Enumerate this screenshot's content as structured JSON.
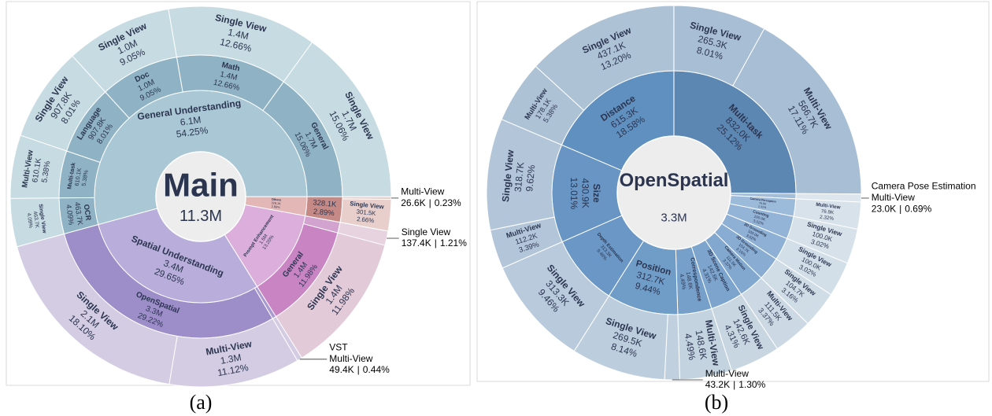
{
  "chart_data": [
    {
      "type": "sunburst",
      "center_title": "Main",
      "center_value": "11.3M",
      "caption": "(a)",
      "direction": "counterclockwise",
      "rotation": 0,
      "callout_separator": "|",
      "nodes": [
        {
          "name": "General Understanding",
          "count": "6.1M",
          "value": 54.25,
          "value_label": "54.25%",
          "color": "#a9c7d4",
          "children": [
            {
              "name": "General",
              "count": "1.7M",
              "value": 15.06,
              "value_label": "15.06%",
              "color": "#8fb3c4",
              "children": [
                {
                  "name": "Single View",
                  "count": "1.7M",
                  "value": 15.06,
                  "value_label": "15.06%",
                  "color": "#c7dbe2"
                }
              ]
            },
            {
              "name": "Math",
              "count": "1.4M",
              "value": 12.66,
              "value_label": "12.66%",
              "color": "#8fb3c4",
              "children": [
                {
                  "name": "Single View",
                  "count": "1.4M",
                  "value": 12.66,
                  "value_label": "12.66%",
                  "color": "#c7dbe2"
                }
              ]
            },
            {
              "name": "Doc",
              "count": "1.0M",
              "value": 9.05,
              "value_label": "9.05%",
              "color": "#8fb3c4",
              "children": [
                {
                  "name": "Single View",
                  "count": "1.0M",
                  "value": 9.05,
                  "value_label": "9.05%",
                  "color": "#c7dbe2"
                }
              ]
            },
            {
              "name": "Language",
              "count": "907.8K",
              "value": 8.01,
              "value_label": "8.01%",
              "color": "#8fb3c4",
              "children": [
                {
                  "name": "Single View",
                  "count": "907.8K",
                  "value": 8.01,
                  "value_label": "8.01%",
                  "color": "#c7dbe2"
                }
              ]
            },
            {
              "name": "Multi-task",
              "count": "610.1K",
              "value": 5.38,
              "value_label": "5.38%",
              "color": "#8fb3c4",
              "children": [
                {
                  "name": "Multi-View",
                  "count": "610.1K",
                  "value": 5.38,
                  "value_label": "5.38%",
                  "color": "#c7dbe2"
                }
              ]
            },
            {
              "name": "OCR",
              "count": "463.7K",
              "value": 4.09,
              "value_label": "4.09%",
              "color": "#8fb3c4",
              "children": [
                {
                  "name": "Single View",
                  "count": "463.7K",
                  "value": 4.09,
                  "value_label": "4.09%",
                  "color": "#c7dbe2"
                }
              ]
            }
          ]
        },
        {
          "name": "Spatial Understanding",
          "count": "3.4M",
          "value": 29.65,
          "value_label": "29.65%",
          "color": "#b9aedb",
          "children": [
            {
              "name": "OpenSpatial",
              "count": "3.3M",
              "value": 29.22,
              "value_label": "29.22%",
              "color": "#9d8dc9",
              "children": [
                {
                  "name": "Single View",
                  "count": "2.1M",
                  "value": 18.1,
                  "value_label": "18.10%",
                  "color": "#d3cce3"
                },
                {
                  "name": "Multi-View",
                  "count": "1.3M",
                  "value": 11.12,
                  "value_label": "11.12%",
                  "color": "#d3cce3"
                }
              ]
            },
            {
              "name": "VST",
              "value": 0.44,
              "color": "#a99bd0",
              "callout": true,
              "children": [
                {
                  "name": "Multi-View",
                  "count": "49.4K",
                  "value": 0.44,
                  "value_label": "0.44%",
                  "color": "#d3cce3",
                  "callout": true
                }
              ]
            }
          ]
        },
        {
          "name": "Prompt Enhancement",
          "count": "1.5M",
          "value": 13.2,
          "value_label": "13.20%",
          "color": "#dcaedb",
          "children": [
            {
              "name": "General",
              "count": "1.4M",
              "value": 11.98,
              "value_label": "11.98%",
              "color": "#c984c3",
              "children": [
                {
                  "name": "Single View",
                  "count": "1.4M",
                  "value": 11.98,
                  "value_label": "11.98%",
                  "color": "#e3cad9"
                }
              ]
            },
            {
              "value": 1.21,
              "color": "#d2a3cf",
              "children": [
                {
                  "name": "Single View",
                  "count": "137.4K",
                  "value": 1.21,
                  "value_label": "1.21%",
                  "color": "#e7d3df",
                  "callout": true
                }
              ]
            }
          ]
        },
        {
          "name": "Others",
          "count": "328.1K",
          "value": 2.89,
          "value_label": "2.89%",
          "color": "#e4b7b7",
          "children": [
            {
              "count": "328.1K",
              "value": 2.89,
              "value_label": "2.89%",
              "color": "#c58a86",
              "children": [
                {
                  "name": "Single View",
                  "count": "301.5K",
                  "value": 2.66,
                  "value_label": "2.66%",
                  "color": "#e8cfcc"
                },
                {
                  "name": "Multi-View",
                  "count": "26.6K",
                  "value": 0.23,
                  "value_label": "0.23%",
                  "color": "#e8cfcc",
                  "callout": true
                }
              ]
            }
          ]
        }
      ]
    },
    {
      "type": "sunburst",
      "center_title": "OpenSpatial",
      "center_value": "3.3M",
      "caption": "(b)",
      "direction": "clockwise",
      "rotation": 90,
      "callout_separator": "|",
      "nodes": [
        {
          "name": "Multi-task",
          "count": "832.0K",
          "value": 25.12,
          "value_label": "25.12%",
          "color": "#5d87b3",
          "children": [
            {
              "name": "Single View",
              "count": "265.3K",
              "value": 8.01,
              "value_label": "8.01%",
              "color": "#a8bed4"
            },
            {
              "name": "Multi-View",
              "count": "566.7K",
              "value": 17.11,
              "value_label": "17.11%",
              "color": "#a8bed4"
            }
          ]
        },
        {
          "name": "Camera Pose Estimation",
          "value": 0.69,
          "color": "#a3bedb",
          "callout": true,
          "children": [
            {
              "name": "Multi-View",
              "count": "23.0K",
              "value": 0.69,
              "value_label": "0.69%",
              "color": "#dde6ed",
              "callout": true
            }
          ]
        },
        {
          "name": "Camera Perception",
          "count": "76.9K",
          "value": 2.32,
          "value_label": "2.32%",
          "color": "#9cbada",
          "children": [
            {
              "name": "Multi-View",
              "count": "76.9K",
              "value": 2.32,
              "value_label": "2.32%",
              "color": "#d8e2ea"
            }
          ]
        },
        {
          "name": "Counting",
          "count": "100.0K",
          "value": 3.02,
          "value_label": "3.02%",
          "color": "#94b4d7",
          "children": [
            {
              "name": "Single View",
              "count": "100.0K",
              "value": 3.02,
              "value_label": "3.02%",
              "color": "#d6e1ea"
            }
          ]
        },
        {
          "name": "2D Grounding",
          "count": "100.0K",
          "value": 3.02,
          "value_label": "3.02%",
          "color": "#8eb0d4",
          "children": [
            {
              "name": "Single View",
              "count": "100.0K",
              "value": 3.02,
              "value_label": "3.02%",
              "color": "#d3dfe8"
            }
          ]
        },
        {
          "name": "3D Grounding",
          "count": "104.7K",
          "value": 3.16,
          "value_label": "3.16%",
          "color": "#88acd2",
          "children": [
            {
              "name": "Single View",
              "count": "104.7K",
              "value": 3.16,
              "value_label": "3.16%",
              "color": "#d0dce6"
            }
          ]
        },
        {
          "name": "Camera Motion",
          "count": "111.5K",
          "value": 3.37,
          "value_label": "3.37%",
          "color": "#82a8cf",
          "children": [
            {
              "name": "Multi-View",
              "count": "111.5K",
              "value": 3.37,
              "value_label": "3.37%",
              "color": "#ccd9e4"
            }
          ]
        },
        {
          "name": "3D Scene Caption",
          "count": "142.6K",
          "value": 4.31,
          "value_label": "4.31%",
          "color": "#7ca4cd",
          "children": [
            {
              "name": "Single View",
              "count": "142.6K",
              "value": 4.31,
              "value_label": "4.31%",
              "color": "#c8d6e2"
            }
          ]
        },
        {
          "name": "Correspondence",
          "count": "148.6K",
          "value": 4.49,
          "value_label": "4.49%",
          "color": "#76a0ca",
          "children": [
            {
              "name": "Multi-View",
              "count": "148.6K",
              "value": 4.49,
              "value_label": "4.49%",
              "color": "#c4d3e0"
            }
          ]
        },
        {
          "name": "Position",
          "count": "312.7K",
          "value": 9.44,
          "value_label": "9.44%",
          "color": "#709cc8",
          "children": [
            {
              "name": "Multi-View",
              "count": "43.2K",
              "value": 1.3,
              "value_label": "1.30%",
              "color": "#c0d0de",
              "callout": true
            },
            {
              "name": "Single View",
              "count": "269.5K",
              "value": 8.14,
              "value_label": "8.14%",
              "color": "#bccddd"
            }
          ]
        },
        {
          "name": "Depth Estimation",
          "count": "313.3K",
          "value": 9.46,
          "value_label": "9.46%",
          "color": "#6a97c5",
          "children": [
            {
              "name": "Single View",
              "count": "313.3K",
              "value": 9.46,
              "value_label": "9.46%",
              "color": "#b8cadb"
            }
          ]
        },
        {
          "name": "Size",
          "count": "430.9K",
          "value": 13.01,
          "value_label": "13.01%",
          "color": "#6895c4",
          "children": [
            {
              "name": "Multi-View",
              "count": "112.2K",
              "value": 3.39,
              "value_label": "3.39%",
              "color": "#b3c6d9"
            },
            {
              "name": "Single View",
              "count": "318.7K",
              "value": 9.62,
              "value_label": "9.62%",
              "color": "#b3c6d9"
            }
          ]
        },
        {
          "name": "Distance",
          "count": "615.3K",
          "value": 18.58,
          "value_label": "18.58%",
          "color": "#6090c0",
          "children": [
            {
              "name": "Multi-View",
              "count": "178.1K",
              "value": 5.38,
              "value_label": "5.38%",
              "color": "#aec2d6"
            },
            {
              "name": "Single View",
              "count": "437.1K",
              "value": 13.2,
              "value_label": "13.20%",
              "color": "#aec2d6"
            }
          ]
        }
      ]
    }
  ]
}
